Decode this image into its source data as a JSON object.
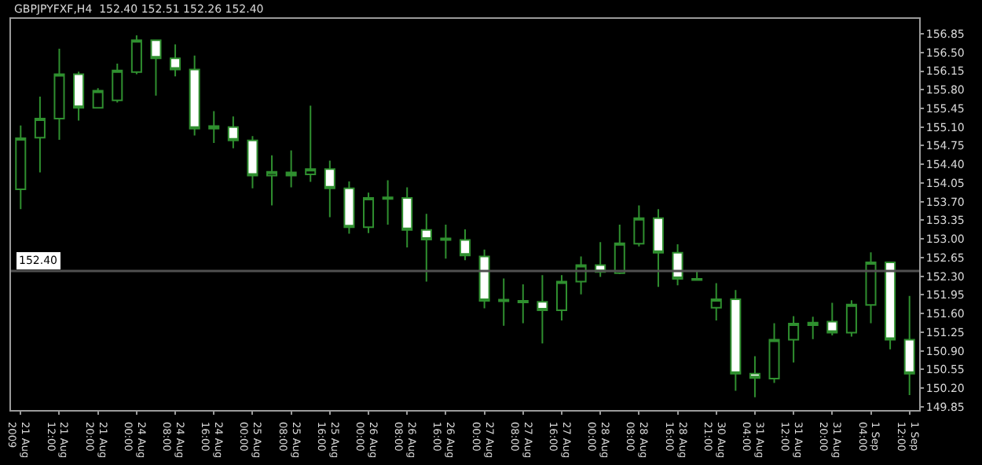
{
  "chart_data": {
    "type": "candlestick",
    "title": "GBPJPYFXF,H4  152.40 152.51 152.26 152.40",
    "categories": [
      "21 Aug 2009",
      null,
      "21 Aug 12:00",
      null,
      "21 Aug 20:00",
      null,
      "24 Aug 00:00",
      null,
      "24 Aug 08:00",
      null,
      "24 Aug 16:00",
      null,
      "25 Aug 00:00",
      null,
      "25 Aug 08:00",
      null,
      "25 Aug 16:00",
      null,
      "26 Aug 00:00",
      null,
      "26 Aug 08:00",
      null,
      "26 Aug 16:00",
      null,
      "27 Aug 00:00",
      null,
      "27 Aug 08:00",
      null,
      "27 Aug 16:00",
      null,
      "28 Aug 00:00",
      null,
      "28 Aug 08:00",
      null,
      "28 Aug 16:00",
      null,
      "30 Aug 21:00",
      null,
      "31 Aug 04:00",
      null,
      "31 Aug 12:00",
      null,
      "31 Aug 20:00",
      null,
      "1 Sep 04:00",
      null,
      "1 Sep 12:00"
    ],
    "ohlc": [
      [
        153.93,
        155.13,
        153.56,
        154.89
      ],
      [
        154.9,
        155.67,
        154.25,
        155.26
      ],
      [
        155.26,
        156.57,
        154.86,
        156.09
      ],
      [
        156.09,
        156.14,
        155.22,
        155.46
      ],
      [
        155.46,
        155.83,
        155.46,
        155.78
      ],
      [
        155.6,
        156.29,
        155.56,
        156.16
      ],
      [
        156.13,
        156.82,
        156.09,
        156.73
      ],
      [
        156.73,
        156.73,
        155.69,
        156.39
      ],
      [
        156.39,
        156.65,
        156.05,
        156.18
      ],
      [
        156.18,
        156.44,
        154.94,
        155.07
      ],
      [
        155.07,
        155.4,
        154.8,
        155.12
      ],
      [
        155.1,
        155.3,
        154.7,
        154.85
      ],
      [
        154.85,
        154.93,
        153.95,
        154.19
      ],
      [
        154.19,
        154.57,
        153.63,
        154.26
      ],
      [
        154.25,
        154.66,
        153.97,
        154.19
      ],
      [
        154.21,
        155.5,
        154.07,
        154.31
      ],
      [
        154.31,
        154.47,
        153.41,
        153.95
      ],
      [
        153.95,
        154.08,
        153.1,
        153.22
      ],
      [
        153.22,
        153.87,
        153.11,
        153.77
      ],
      [
        153.78,
        154.1,
        153.27,
        153.75
      ],
      [
        153.77,
        153.97,
        152.84,
        153.17
      ],
      [
        153.17,
        153.47,
        152.2,
        152.99
      ],
      [
        153.01,
        153.27,
        152.63,
        152.98
      ],
      [
        152.98,
        153.18,
        152.6,
        152.69
      ],
      [
        152.67,
        152.8,
        151.7,
        151.84
      ],
      [
        151.86,
        152.26,
        151.37,
        151.83
      ],
      [
        151.84,
        152.15,
        151.42,
        151.81
      ],
      [
        151.82,
        152.32,
        151.04,
        151.66
      ],
      [
        151.66,
        152.32,
        151.47,
        152.2
      ],
      [
        152.2,
        152.67,
        151.96,
        152.51
      ],
      [
        152.51,
        152.94,
        152.29,
        152.38
      ],
      [
        152.36,
        153.27,
        152.34,
        152.92
      ],
      [
        152.91,
        153.63,
        152.86,
        153.39
      ],
      [
        153.39,
        153.56,
        152.1,
        152.74
      ],
      [
        152.74,
        152.9,
        152.13,
        152.25
      ],
      [
        152.25,
        152.41,
        152.23,
        152.23
      ],
      [
        151.71,
        152.17,
        151.47,
        151.87
      ],
      [
        151.87,
        152.04,
        150.15,
        150.47
      ],
      [
        150.47,
        150.8,
        150.03,
        150.39
      ],
      [
        150.38,
        151.42,
        150.3,
        151.11
      ],
      [
        151.11,
        151.55,
        150.68,
        151.41
      ],
      [
        151.38,
        151.54,
        151.12,
        151.43
      ],
      [
        151.45,
        151.8,
        151.19,
        151.24
      ],
      [
        151.24,
        151.85,
        151.17,
        151.77
      ],
      [
        151.76,
        152.75,
        151.42,
        152.56
      ],
      [
        152.56,
        152.56,
        150.93,
        151.11
      ],
      [
        151.11,
        151.93,
        150.07,
        150.47
      ]
    ],
    "color": "#2f8f2f",
    "ylim": [
      149.79,
      157.13
    ],
    "yticks": [
      156.85,
      {
        "value": 156.5,
        "label": "156.50"
      },
      156.15,
      {
        "value": 155.8,
        "label": "155.80"
      },
      155.45,
      {
        "value": 155.1,
        "label": "155.10"
      },
      154.75,
      {
        "value": 154.4,
        "label": "154.40"
      },
      154.05,
      {
        "value": 153.7,
        "label": "153.70"
      },
      153.35,
      {
        "value": 153,
        "label": "153.00"
      },
      152.65,
      {
        "value": 152.3,
        "label": "152.30"
      },
      151.95,
      {
        "value": 151.6,
        "label": "151.60"
      },
      151.25,
      {
        "value": 150.9,
        "label": "150.90"
      },
      150.55,
      {
        "value": 150.2,
        "label": "150.20"
      },
      149.85
    ],
    "ref_lines": [
      {
        "axis": "y",
        "value": 152.4,
        "label": "152.40",
        "color": "#505050"
      }
    ]
  }
}
